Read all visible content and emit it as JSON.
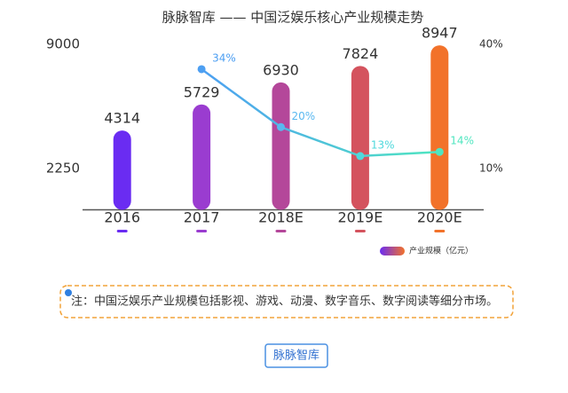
{
  "chart_data": {
    "type": "bar",
    "title": "脉脉智库 —— 中国泛娱乐核心产业规模走势",
    "categories": [
      "2016",
      "2017",
      "2018E",
      "2019E",
      "2020E"
    ],
    "series": [
      {
        "name": "产业规模（亿元）",
        "type": "bar",
        "colors": [
          "#6a2cf2",
          "#9a3cd0",
          "#b4479a",
          "#d4535e",
          "#f2722a"
        ],
        "values": [
          4314,
          5729,
          6930,
          7824,
          8947
        ]
      },
      {
        "type": "line",
        "axis": "y2",
        "colors": [
          "#4d9ff2",
          "#4d9ff2",
          "#5ab8f0",
          "#4fd8dc",
          "#4fe6c0"
        ],
        "values": [
          null,
          34,
          20,
          13,
          14
        ],
        "value_labels": [
          null,
          "34%",
          "20%",
          "13%",
          "14%"
        ]
      }
    ],
    "ylim": [
      0,
      9000
    ],
    "yticks": [
      2250,
      9000
    ],
    "y2lim": [
      0,
      40
    ],
    "y2ticks": [
      {
        "value": 10,
        "label": "10%"
      },
      {
        "value": 40,
        "label": "40%"
      }
    ],
    "legend": "bottom-right"
  },
  "note": "注：中国泛娱乐产业规模包括影视、游戏、动漫、数字音乐、数字阅读等细分市场。",
  "button": "脉脉智库"
}
